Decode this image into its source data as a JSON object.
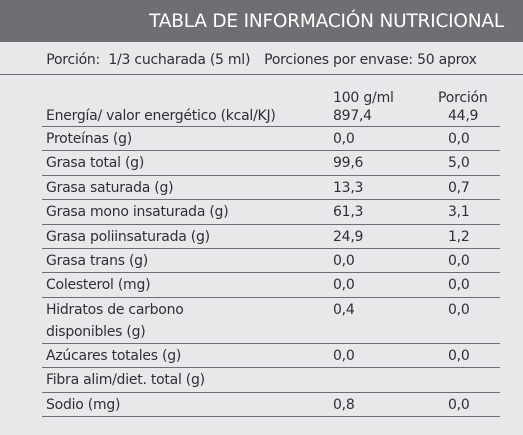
{
  "title": "TABLA DE INFORMACIÓN NUTRICIONAL",
  "portion": "Porción:  1/3 cucharada (5 ml)",
  "servings": "Porciones por envase: 50 aprox",
  "columns": [
    "100 g/ml",
    "Porción"
  ],
  "rows": [
    {
      "name": "Energía/ valor energético  (kcal/KJ)",
      "per100": "897,4",
      "portion": "44,9"
    },
    {
      "name": "Proteínas (g)",
      "per100": "0,0",
      "portion": "0,0"
    },
    {
      "name": "Grasa  total (g)",
      "per100": "99,6",
      "portion": "5,0"
    },
    {
      "name": "Grasa saturada (g)",
      "per100": "13,3",
      "portion": "0,7"
    },
    {
      "name": "Grasa mono insaturada (g)",
      "per100": "61,3",
      "portion": "3,1"
    },
    {
      "name": "Grasa poliinsaturada (g)",
      "per100": "24,9",
      "portion": "1,2"
    },
    {
      "name": "Grasa trans (g)",
      "per100": "0,0",
      "portion": "0,0"
    },
    {
      "name": "Colesterol (mg)",
      "per100": "0,0",
      "portion": "0,0"
    },
    {
      "name": "Hidratos de carbono disponibles (g)",
      "per100": "0,4",
      "portion": "0,0"
    },
    {
      "name": "Azúcares totales (g)",
      "per100": "0,0",
      "portion": "0,0"
    },
    {
      "name": "Fibra alim/diet. total (g)",
      "per100": "",
      "portion": ""
    },
    {
      "name": "Sodio (mg)",
      "per100": "0,8",
      "portion": "0,0"
    }
  ]
}
